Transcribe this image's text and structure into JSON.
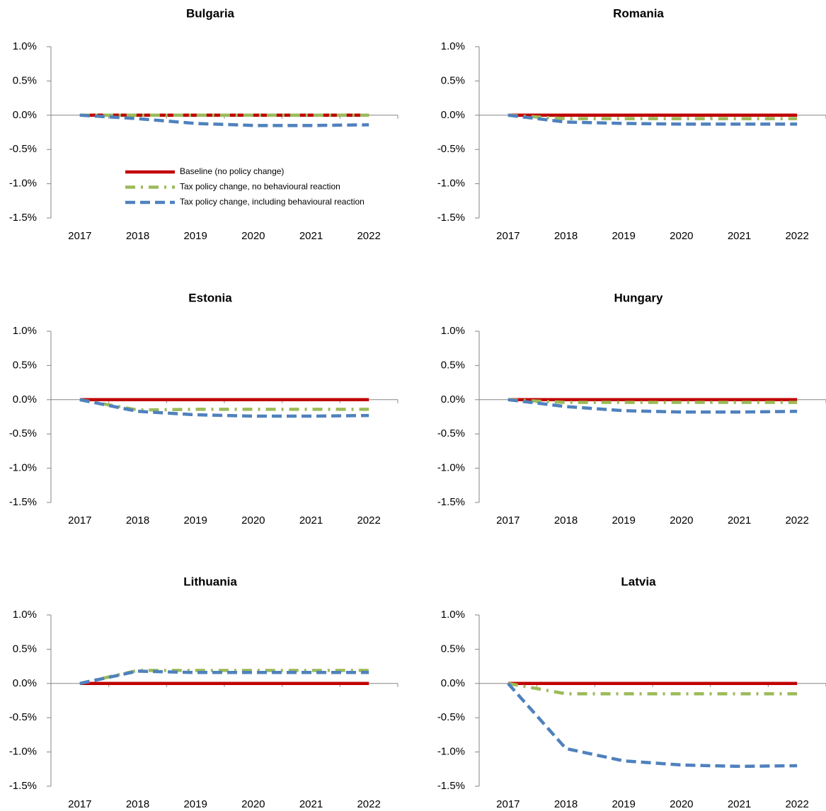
{
  "chart_data": [
    {
      "type": "line",
      "title": "Bulgaria",
      "categories": [
        "2017",
        "2018",
        "2019",
        "2020",
        "2021",
        "2022"
      ],
      "ylim": [
        -1.5,
        1.0
      ],
      "yticks": [
        {
          "value": 1.0,
          "label": "1.0%"
        },
        {
          "value": 0.5,
          "label": "0.5%"
        },
        {
          "value": 0.0,
          "label": "0.0%"
        },
        {
          "value": -0.5,
          "label": "-0.5%"
        },
        {
          "value": -1.0,
          "label": "-1.0%"
        },
        {
          "value": -1.5,
          "label": "-1.5%"
        }
      ],
      "legend": "lower center",
      "series": [
        {
          "name": "Baseline (no policy change)",
          "color": "#c00000",
          "dash": "solid",
          "values": [
            0,
            0,
            0,
            0,
            0,
            0
          ]
        },
        {
          "name": "Tax policy change, no behavioural reaction",
          "color": "#9bbb59",
          "dash": "dash-dot",
          "values": [
            0,
            0,
            0,
            0,
            0,
            0
          ]
        },
        {
          "name": "Tax policy change, including behavioural reaction",
          "color": "#4f81bd",
          "dash": "dash",
          "values": [
            0,
            -0.05,
            -0.12,
            -0.15,
            -0.15,
            -0.14
          ]
        }
      ]
    },
    {
      "type": "line",
      "title": "Romania",
      "categories": [
        "2017",
        "2018",
        "2019",
        "2020",
        "2021",
        "2022"
      ],
      "ylim": [
        -1.5,
        1.0
      ],
      "yticks": [
        {
          "value": 1.0,
          "label": "1.0%"
        },
        {
          "value": 0.5,
          "label": "0.5%"
        },
        {
          "value": 0.0,
          "label": "0.0%"
        },
        {
          "value": -0.5,
          "label": "-0.5%"
        },
        {
          "value": -1.0,
          "label": "-1.0%"
        },
        {
          "value": -1.5,
          "label": "-1.5%"
        }
      ],
      "series": [
        {
          "color": "#c00000",
          "dash": "solid",
          "values": [
            0,
            0,
            0,
            0,
            0,
            0
          ]
        },
        {
          "color": "#9bbb59",
          "dash": "dash-dot",
          "values": [
            0,
            -0.05,
            -0.05,
            -0.05,
            -0.05,
            -0.05
          ]
        },
        {
          "color": "#4f81bd",
          "dash": "dash",
          "values": [
            0,
            -0.1,
            -0.12,
            -0.13,
            -0.13,
            -0.13
          ]
        }
      ]
    },
    {
      "type": "line",
      "title": "Estonia",
      "categories": [
        "2017",
        "2018",
        "2019",
        "2020",
        "2021",
        "2022"
      ],
      "ylim": [
        -1.5,
        1.0
      ],
      "yticks": [
        {
          "value": 1.0,
          "label": "1.0%"
        },
        {
          "value": 0.5,
          "label": "0.5%"
        },
        {
          "value": 0.0,
          "label": "0.0%"
        },
        {
          "value": -0.5,
          "label": "-0.5%"
        },
        {
          "value": -1.0,
          "label": "-1.0%"
        },
        {
          "value": -1.5,
          "label": "-1.5%"
        }
      ],
      "series": [
        {
          "color": "#c00000",
          "dash": "solid",
          "values": [
            0,
            0,
            0,
            0,
            0,
            0
          ]
        },
        {
          "color": "#9bbb59",
          "dash": "dash-dot",
          "values": [
            0,
            -0.15,
            -0.14,
            -0.14,
            -0.14,
            -0.14
          ]
        },
        {
          "color": "#4f81bd",
          "dash": "dash",
          "values": [
            0,
            -0.17,
            -0.22,
            -0.24,
            -0.24,
            -0.23
          ]
        }
      ]
    },
    {
      "type": "line",
      "title": "Hungary",
      "categories": [
        "2017",
        "2018",
        "2019",
        "2020",
        "2021",
        "2022"
      ],
      "ylim": [
        -1.5,
        1.0
      ],
      "yticks": [
        {
          "value": 1.0,
          "label": "1.0%"
        },
        {
          "value": 0.5,
          "label": "0.5%"
        },
        {
          "value": 0.0,
          "label": "0.0%"
        },
        {
          "value": -0.5,
          "label": "-0.5%"
        },
        {
          "value": -1.0,
          "label": "-1.0%"
        },
        {
          "value": -1.5,
          "label": "-1.5%"
        }
      ],
      "series": [
        {
          "color": "#c00000",
          "dash": "solid",
          "values": [
            0,
            0,
            0,
            0,
            0,
            0
          ]
        },
        {
          "color": "#9bbb59",
          "dash": "dash-dot",
          "values": [
            0,
            -0.04,
            -0.04,
            -0.04,
            -0.04,
            -0.04
          ]
        },
        {
          "color": "#4f81bd",
          "dash": "dash",
          "values": [
            0,
            -0.1,
            -0.16,
            -0.18,
            -0.18,
            -0.17
          ]
        }
      ]
    },
    {
      "type": "line",
      "title": "Lithuania",
      "categories": [
        "2017",
        "2018",
        "2019",
        "2020",
        "2021",
        "2022"
      ],
      "ylim": [
        -1.5,
        1.0
      ],
      "yticks": [
        {
          "value": 1.0,
          "label": "1.0%"
        },
        {
          "value": 0.5,
          "label": "0.5%"
        },
        {
          "value": 0.0,
          "label": "0.0%"
        },
        {
          "value": -0.5,
          "label": "-0.5%"
        },
        {
          "value": -1.0,
          "label": "-1.0%"
        },
        {
          "value": -1.5,
          "label": "-1.5%"
        }
      ],
      "series": [
        {
          "color": "#c00000",
          "dash": "solid",
          "values": [
            0,
            0,
            0,
            0,
            0,
            0
          ]
        },
        {
          "color": "#9bbb59",
          "dash": "dash-dot",
          "values": [
            0,
            0.19,
            0.19,
            0.19,
            0.19,
            0.19
          ]
        },
        {
          "color": "#4f81bd",
          "dash": "dash",
          "values": [
            0,
            0.18,
            0.16,
            0.16,
            0.16,
            0.16
          ]
        }
      ]
    },
    {
      "type": "line",
      "title": "Latvia",
      "categories": [
        "2017",
        "2018",
        "2019",
        "2020",
        "2021",
        "2022"
      ],
      "ylim": [
        -1.5,
        1.0
      ],
      "yticks": [
        {
          "value": 1.0,
          "label": "1.0%"
        },
        {
          "value": 0.5,
          "label": "0.5%"
        },
        {
          "value": 0.0,
          "label": "0.0%"
        },
        {
          "value": -0.5,
          "label": "-0.5%"
        },
        {
          "value": -1.0,
          "label": "-1.0%"
        },
        {
          "value": -1.5,
          "label": "-1.5%"
        }
      ],
      "series": [
        {
          "color": "#c00000",
          "dash": "solid",
          "values": [
            0,
            0,
            0,
            0,
            0,
            0
          ]
        },
        {
          "color": "#9bbb59",
          "dash": "dash-dot",
          "values": [
            0,
            -0.15,
            -0.15,
            -0.15,
            -0.15,
            -0.15
          ]
        },
        {
          "color": "#4f81bd",
          "dash": "dash",
          "values": [
            0,
            -0.95,
            -1.13,
            -1.19,
            -1.21,
            -1.2
          ]
        }
      ]
    }
  ]
}
